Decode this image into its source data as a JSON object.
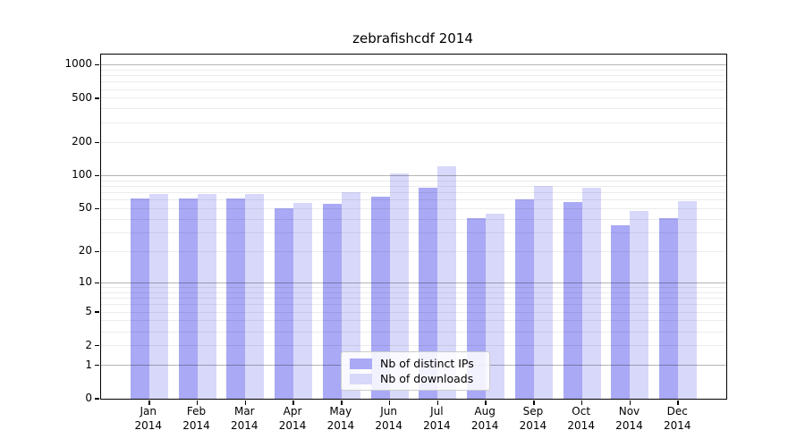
{
  "chart_data": {
    "type": "bar",
    "title": "zebrafishcdf 2014",
    "scale": "log1p",
    "ylim": [
      0,
      1236
    ],
    "grid": true,
    "legend_position": "lower center",
    "categories": [
      "Jan",
      "Feb",
      "Mar",
      "Apr",
      "May",
      "Jun",
      "Jul",
      "Aug",
      "Sep",
      "Oct",
      "Nov",
      "Dec"
    ],
    "year_label": "2014",
    "series": [
      {
        "name": "Nb of distinct IPs",
        "color": "#a9a9f5",
        "values": [
          62,
          62,
          62,
          50,
          55,
          64,
          78,
          41,
          61,
          57,
          35,
          41
        ]
      },
      {
        "name": "Nb of downloads",
        "color": "#d8d8fa",
        "values": [
          68,
          68,
          68,
          56,
          71,
          105,
          121,
          45,
          81,
          78,
          48,
          59
        ]
      }
    ],
    "yticks": [
      1000,
      500,
      200,
      100,
      50,
      20,
      10,
      5,
      2,
      1,
      0
    ],
    "major_gridlines": [
      1,
      10,
      100,
      1000
    ],
    "minor_gridlines": [
      2,
      3,
      4,
      5,
      6,
      7,
      8,
      9,
      20,
      30,
      40,
      50,
      60,
      70,
      80,
      90,
      200,
      300,
      400,
      500,
      600,
      700,
      800,
      900
    ]
  },
  "colors": {
    "background": "#ffffff",
    "axis": "#000000",
    "major_grid": "#b4b4b4",
    "minor_grid": "#ececec",
    "legend_border": "#cccccc",
    "text": "#000000"
  }
}
